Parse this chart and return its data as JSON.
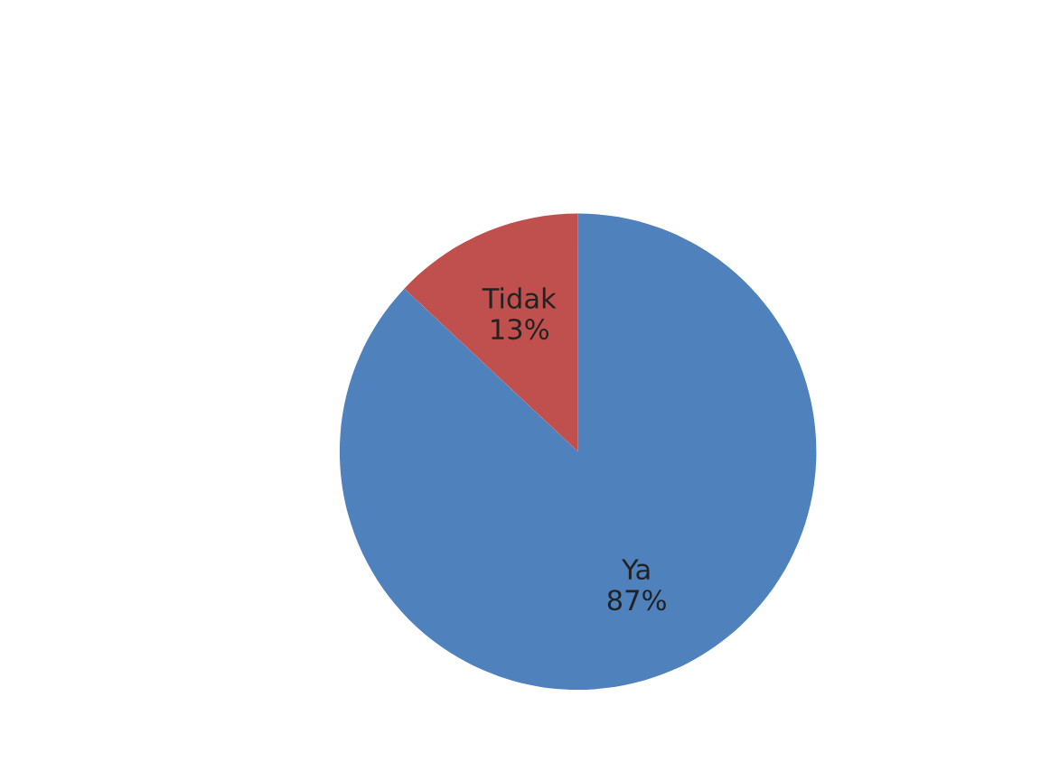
{
  "chart_data": {
    "type": "pie",
    "categories": [
      "Ya",
      "Tidak"
    ],
    "values": [
      87,
      13
    ],
    "colors": [
      "#4f81bd",
      "#c0504d"
    ],
    "value_labels": [
      "87%",
      "13%"
    ],
    "legend": false
  }
}
